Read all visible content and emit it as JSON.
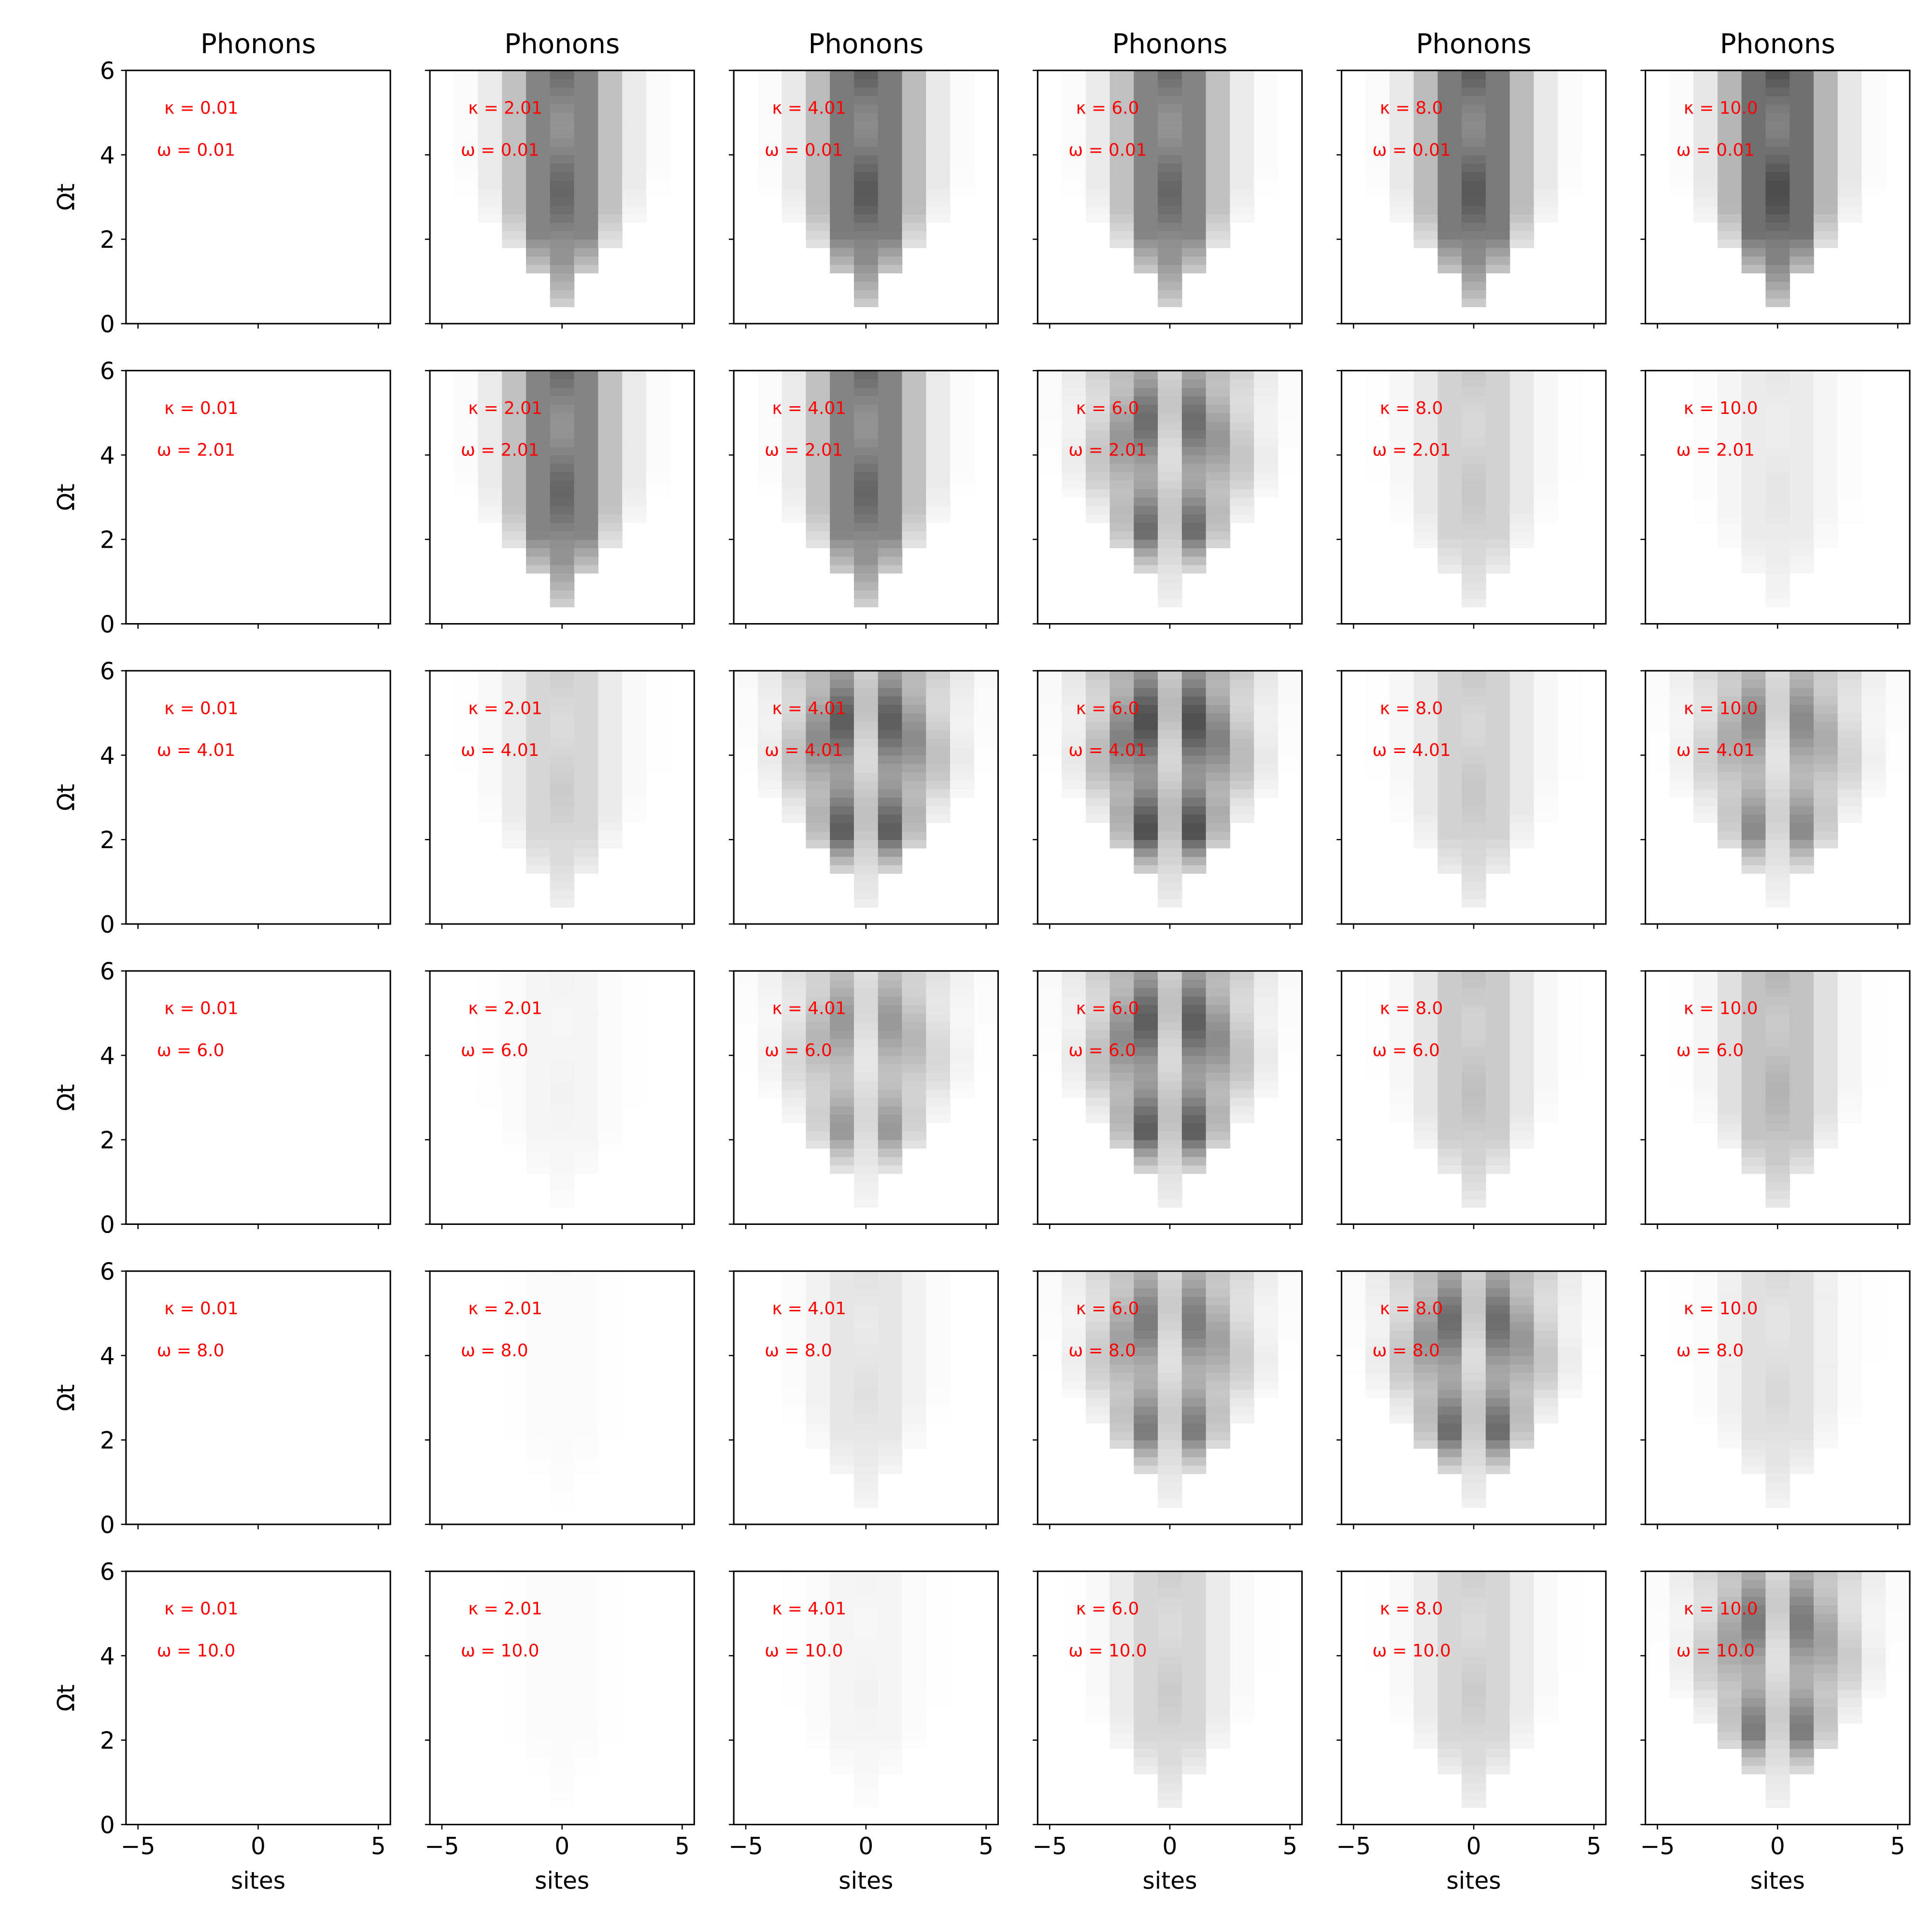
{
  "figure": {
    "column_titles": [
      "Phonons",
      "Phonons",
      "Phonons",
      "Phonons",
      "Phonons",
      "Phonons"
    ],
    "x_label": "sites",
    "y_label": "Ωt",
    "annotation_color": "#ff0000",
    "colormap": "gray_r"
  },
  "chart_data": {
    "type": "heatmap",
    "layout": {
      "rows": 6,
      "cols": 6
    },
    "xlim": [
      -5.5,
      5.5
    ],
    "ylim": [
      0,
      6
    ],
    "xticks": [
      -5,
      0,
      5
    ],
    "xtick_labels": [
      "−5",
      "0",
      "5"
    ],
    "yticks": [
      0,
      2,
      4,
      6
    ],
    "ytick_labels": [
      "0",
      "2",
      "4",
      "6"
    ],
    "kappa_labels": [
      "κ = 0.01",
      "κ = 2.01",
      "κ = 4.01",
      "κ = 6.0",
      "κ = 8.0",
      "κ = 10.0"
    ],
    "omega_labels": [
      "ω = 0.01",
      "ω = 2.01",
      "ω = 4.01",
      "ω = 6.0",
      "ω = 8.0",
      "ω = 10.0"
    ],
    "sites": [
      -5,
      -4,
      -3,
      -2,
      -1,
      0,
      1,
      2,
      3,
      4,
      5
    ],
    "time_steps": 30,
    "intensity": [
      [
        0.0,
        0.6,
        0.65,
        0.6,
        0.65,
        0.7
      ],
      [
        0.0,
        0.6,
        0.6,
        0.5,
        0.22,
        0.1
      ],
      [
        0.0,
        0.2,
        0.55,
        0.6,
        0.22,
        0.4
      ],
      [
        0.0,
        0.05,
        0.35,
        0.55,
        0.25,
        0.3
      ],
      [
        0.0,
        0.02,
        0.12,
        0.45,
        0.5,
        0.15
      ],
      [
        0.0,
        0.02,
        0.05,
        0.2,
        0.2,
        0.45
      ]
    ],
    "peak_mode": [
      [
        0,
        1,
        1,
        1,
        1,
        1
      ],
      [
        0,
        1,
        1,
        2,
        1,
        1
      ],
      [
        0,
        1,
        2,
        2,
        1,
        2
      ],
      [
        0,
        1,
        2,
        2,
        1,
        1
      ],
      [
        0,
        1,
        1,
        2,
        2,
        1
      ],
      [
        0,
        1,
        1,
        1,
        1,
        2
      ]
    ]
  }
}
